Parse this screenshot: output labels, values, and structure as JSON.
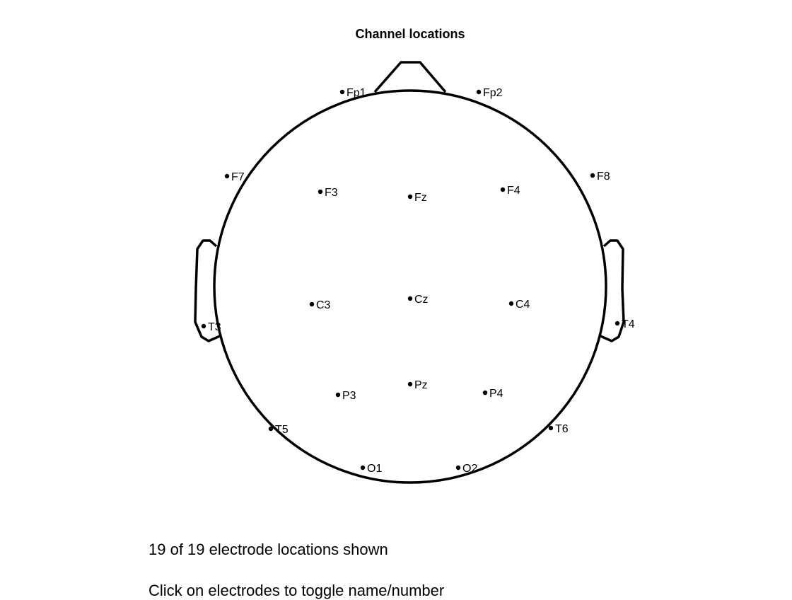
{
  "title": "Channel locations",
  "info": {
    "count_text": "19 of 19 electrode locations shown",
    "hint_text": "Click on electrodes to toggle name/number"
  },
  "electrodes": [
    {
      "label": "Fp1"
    },
    {
      "label": "Fp2"
    },
    {
      "label": "F7"
    },
    {
      "label": "F3"
    },
    {
      "label": "Fz"
    },
    {
      "label": "F4"
    },
    {
      "label": "F8"
    },
    {
      "label": "T3"
    },
    {
      "label": "C3"
    },
    {
      "label": "Cz"
    },
    {
      "label": "C4"
    },
    {
      "label": "T4"
    },
    {
      "label": "T5"
    },
    {
      "label": "P3"
    },
    {
      "label": "Pz"
    },
    {
      "label": "P4"
    },
    {
      "label": "T6"
    },
    {
      "label": "O1"
    },
    {
      "label": "O2"
    }
  ],
  "colors": {
    "head_outline": "#000000",
    "electrode": "#000000",
    "background": "#ffffff"
  }
}
